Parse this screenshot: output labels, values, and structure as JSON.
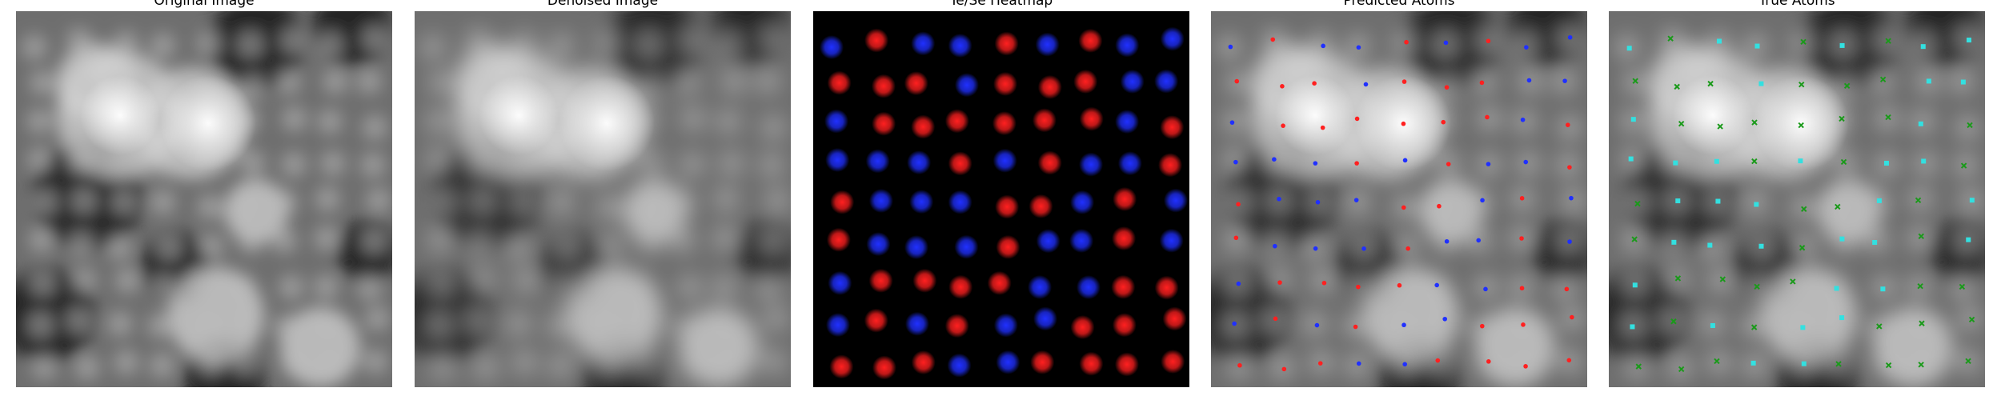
{
  "panels": [
    {
      "id": "original",
      "title": "Original Image"
    },
    {
      "id": "denoised",
      "title": "Denoised Image"
    },
    {
      "id": "heatmap",
      "title": "Te/Se Heatmap"
    },
    {
      "id": "predicted",
      "title": "Predicted Atoms"
    },
    {
      "id": "true",
      "title": "True Atoms"
    }
  ],
  "colors": {
    "te_red": "#ff2020",
    "se_blue": "#2030ff",
    "true_cyan": "#33e0e0",
    "true_green": "#1a9a1a",
    "heatmap_background": "#000000"
  },
  "icons": {
    "predicted_marker": "dot",
    "true_marker_te": "x-cross",
    "true_marker_se": "square"
  }
}
